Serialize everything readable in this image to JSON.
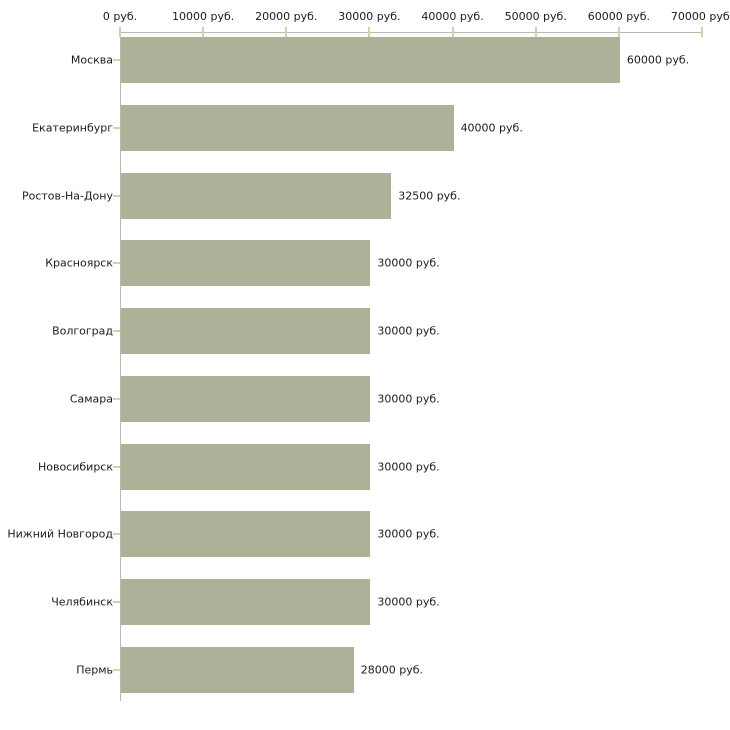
{
  "chart_data": {
    "type": "bar",
    "orientation": "horizontal",
    "title": "",
    "xlabel": "",
    "ylabel": "",
    "unit": "руб.",
    "categories": [
      "Москва",
      "Екатеринбург",
      "Ростов-На-Дону",
      "Красноярск",
      "Волгоград",
      "Самара",
      "Новосибирск",
      "Нижний Новгород",
      "Челябинск",
      "Пермь"
    ],
    "values": [
      60000,
      40000,
      32500,
      30000,
      30000,
      30000,
      30000,
      30000,
      30000,
      28000
    ],
    "value_labels": [
      "60000 руб.",
      "40000 руб.",
      "32500 руб.",
      "30000 руб.",
      "30000 руб.",
      "30000 руб.",
      "30000 руб.",
      "30000 руб.",
      "30000 руб.",
      "28000 руб."
    ],
    "x_ticks": [
      0,
      10000,
      20000,
      30000,
      40000,
      50000,
      60000,
      70000
    ],
    "x_tick_labels": [
      "0 руб.",
      "10000 руб.",
      "20000 руб.",
      "30000 руб.",
      "40000 руб.",
      "50000 руб.",
      "60000 руб.",
      "70000 руб."
    ],
    "xlim": [
      0,
      70000
    ],
    "grid": false,
    "legend": false,
    "axis_position": "top",
    "bar_color": "#acb198",
    "axis_color": "#b9b9b1",
    "tick_color": "#d4d1ab",
    "text_color": "#1c1c1c",
    "background_color": "#ffffff"
  }
}
